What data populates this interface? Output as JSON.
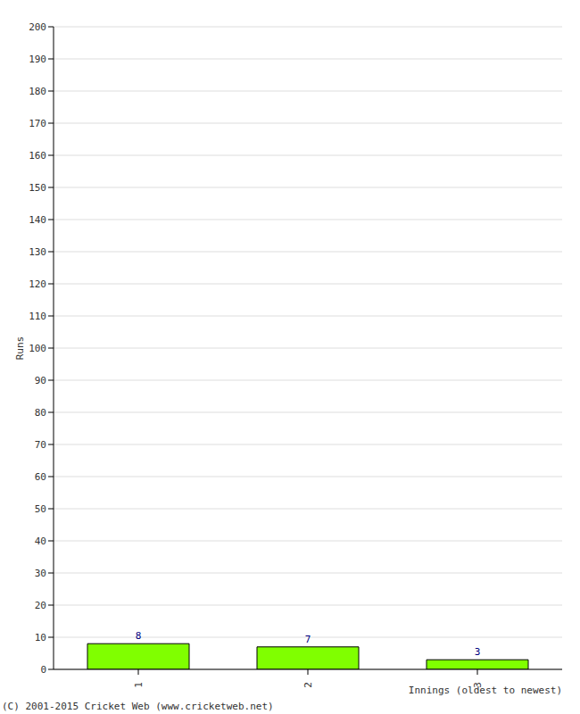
{
  "chart_data": {
    "type": "bar",
    "categories": [
      "1",
      "2",
      "3"
    ],
    "values": [
      8,
      7,
      3
    ],
    "color": "#80ff00",
    "ylabel": "Runs",
    "xlabel": "Innings (oldest to newest)",
    "ylim": [
      0,
      200
    ],
    "yticks": [
      0,
      10,
      20,
      30,
      40,
      50,
      60,
      70,
      80,
      90,
      100,
      110,
      120,
      130,
      140,
      150,
      160,
      170,
      180,
      190,
      200
    ],
    "grid": true,
    "data_labels": true,
    "annotation": "(C) 2001-2015 Cricket Web (www.cricketweb.net)"
  }
}
